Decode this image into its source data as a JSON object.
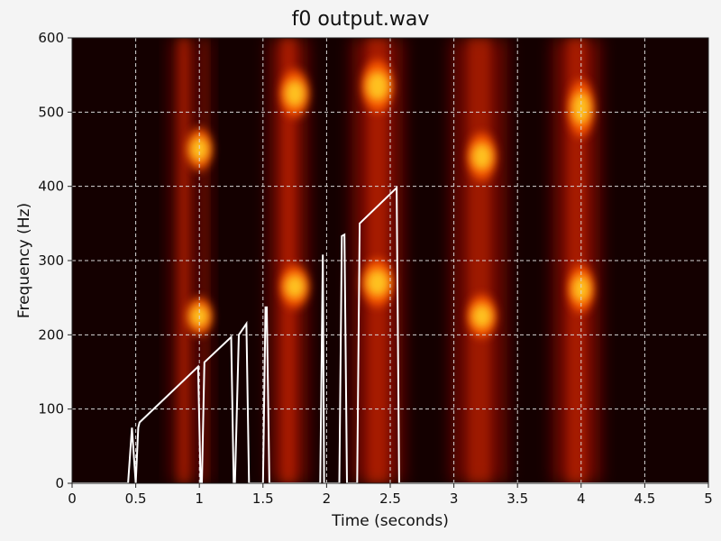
{
  "chart_data": {
    "type": "heatmap",
    "title": "f0 output.wav",
    "xlabel": "Time (seconds)",
    "ylabel": "Frequency (Hz)",
    "xlim": [
      0,
      5
    ],
    "ylim": [
      0,
      600
    ],
    "xticks": [
      0,
      0.5,
      1,
      1.5,
      2,
      2.5,
      3,
      3.5,
      4,
      4.5,
      5
    ],
    "xtick_labels": [
      "0",
      "0.5",
      "1",
      "1.5",
      "2",
      "2.5",
      "3",
      "3.5",
      "4",
      "4.5",
      "5"
    ],
    "yticks": [
      0,
      100,
      200,
      300,
      400,
      500,
      600
    ],
    "ytick_labels": [
      "0",
      "100",
      "200",
      "300",
      "400",
      "500",
      "600"
    ],
    "grid": true,
    "colors": {
      "background": "#140000",
      "contour": "#ffffff",
      "grid": "#d8d8d8"
    },
    "spectrogram_bands": [
      {
        "t0": 0.78,
        "t1": 0.98,
        "f0": 0,
        "f1": 600,
        "level": 0.55
      },
      {
        "t0": 1.0,
        "t1": 1.1,
        "f0": 0,
        "f1": 600,
        "level": 0.35
      },
      {
        "t0": 1.55,
        "t1": 1.85,
        "f0": 0,
        "f1": 600,
        "level": 0.6
      },
      {
        "t0": 2.2,
        "t1": 2.6,
        "f0": 0,
        "f1": 600,
        "level": 0.6
      },
      {
        "t0": 2.98,
        "t1": 3.42,
        "f0": 0,
        "f1": 600,
        "level": 0.55
      },
      {
        "t0": 3.78,
        "t1": 4.15,
        "f0": 0,
        "f1": 600,
        "level": 0.6
      }
    ],
    "spectrogram_blobs": [
      {
        "t": 1.0,
        "f": 450,
        "dt": 0.18,
        "df": 18,
        "level": 1.0
      },
      {
        "t": 1.0,
        "f": 225,
        "dt": 0.18,
        "df": 16,
        "level": 1.0
      },
      {
        "t": 1.75,
        "f": 525,
        "dt": 0.2,
        "df": 20,
        "level": 1.0
      },
      {
        "t": 1.75,
        "f": 265,
        "dt": 0.2,
        "df": 18,
        "level": 1.0
      },
      {
        "t": 2.4,
        "f": 535,
        "dt": 0.22,
        "df": 22,
        "level": 1.0
      },
      {
        "t": 2.4,
        "f": 270,
        "dt": 0.22,
        "df": 20,
        "level": 1.0
      },
      {
        "t": 3.22,
        "f": 440,
        "dt": 0.2,
        "df": 20,
        "level": 1.0
      },
      {
        "t": 3.22,
        "f": 225,
        "dt": 0.2,
        "df": 18,
        "level": 1.0
      },
      {
        "t": 4.0,
        "f": 505,
        "dt": 0.18,
        "df": 24,
        "level": 1.0
      },
      {
        "t": 4.0,
        "f": 262,
        "dt": 0.18,
        "df": 20,
        "level": 1.0
      }
    ],
    "series": [
      {
        "x": [
          0.0,
          0.44,
          0.47,
          0.5,
          0.52,
          0.53,
          0.99,
          1.01,
          1.02,
          1.04,
          1.25,
          1.27,
          1.28,
          1.31,
          1.37,
          1.39,
          1.5,
          1.52,
          1.53,
          1.55,
          1.95,
          1.97,
          1.98,
          2.1,
          2.12,
          2.14,
          2.16,
          2.17,
          2.19,
          2.22,
          2.24,
          2.26,
          2.55,
          2.57,
          5.0
        ],
        "y": [
          0,
          0,
          75,
          0,
          75,
          82,
          157,
          0,
          0,
          163,
          197,
          0,
          0,
          200,
          215,
          0,
          0,
          237,
          237,
          0,
          0,
          308,
          0,
          0,
          333,
          335,
          0,
          0,
          0,
          0,
          0,
          350,
          398,
          0,
          0
        ]
      }
    ]
  }
}
